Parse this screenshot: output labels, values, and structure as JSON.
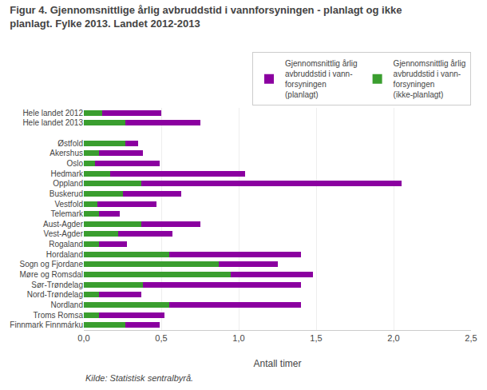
{
  "chart_data": {
    "type": "bar",
    "orientation": "horizontal",
    "stacked": true,
    "title": "Figur 4. Gjennomsnittlige årlig avbruddstid i vannforsyningen - planlagt og ikke\nplanlagt. Fylke 2013. Landet 2012-2013",
    "x_label": "Antall timer",
    "categories": [
      "Hele landet 2012",
      "Hele landet 2013",
      null,
      "Østfold",
      "Akershus",
      "Oslo",
      "Hedmark",
      "Oppland",
      "Buskerud",
      "Vestfold",
      "Telemark",
      "Aust-Agder",
      "Vest-Agder",
      "Rogaland",
      "Hordaland",
      "Sogn og Fjordane",
      "Møre og Romsdal",
      "Sør-Trøndelag",
      "Nord-Trøndelag",
      "Nordland",
      "Troms Romsa",
      "Finnmark Finnmárku"
    ],
    "series": [
      {
        "name": "Gjennomsnittlig årlig\navbruddstid i vann-\nforsyningen\n(ikke-planlagt)",
        "color": "#3a9e2f",
        "values": [
          0.12,
          0.27,
          0.0,
          0.27,
          0.1,
          0.07,
          0.17,
          0.37,
          0.25,
          0.09,
          0.1,
          0.37,
          0.22,
          0.1,
          0.55,
          0.87,
          0.95,
          0.38,
          0.1,
          0.55,
          0.1,
          0.27
        ]
      },
      {
        "name": "Gjennomsnittlig årlig\navbruddstid i vann-\nforsyningen\n(planlagt)",
        "color": "#8b00a0",
        "values": [
          0.38,
          0.48,
          0.0,
          0.08,
          0.28,
          0.42,
          0.87,
          1.68,
          0.38,
          0.38,
          0.13,
          0.38,
          0.35,
          0.18,
          0.85,
          0.38,
          0.53,
          1.02,
          0.27,
          0.85,
          0.42,
          0.22
        ]
      }
    ],
    "xlim": [
      0,
      2.5
    ],
    "xticks": [
      {
        "value": 0.0,
        "label": "0,0"
      },
      {
        "value": 0.5,
        "label": "0,5"
      },
      {
        "value": 1.0,
        "label": "1,0"
      },
      {
        "value": 1.5,
        "label": "1,5"
      },
      {
        "value": 2.0,
        "label": "2,0"
      },
      {
        "value": 2.5,
        "label": "2,5"
      }
    ],
    "grid": true,
    "legend": "upper right",
    "annotations": [
      {
        "text": "Kilde: Statistisk sentralbyrå."
      }
    ]
  }
}
